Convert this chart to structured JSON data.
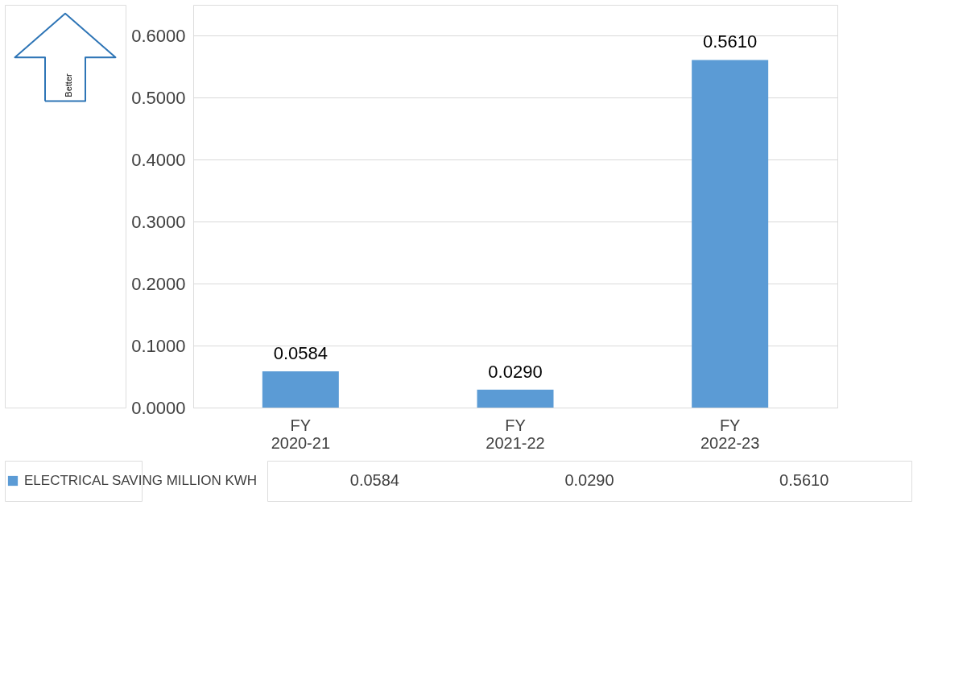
{
  "chart_data": {
    "type": "bar",
    "categories": [
      "FY 2020-21",
      "FY 2021-22",
      "FY 2022-23"
    ],
    "series": [
      {
        "name": "ELECTRICAL SAVING MILLION KWH",
        "color": "#5b9bd5",
        "values": [
          0.0584,
          0.029,
          0.561
        ],
        "value_labels": [
          "0.0584",
          "0.0290",
          "0.5610"
        ]
      }
    ],
    "ylim": [
      0,
      0.65
    ],
    "yticks": [
      {
        "value": 0,
        "label": "0.0000"
      },
      {
        "value": 0.1,
        "label": "0.1000"
      },
      {
        "value": 0.2,
        "label": "0.2000"
      },
      {
        "value": 0.3,
        "label": "0.3000"
      },
      {
        "value": 0.4,
        "label": "0.4000"
      },
      {
        "value": 0.5,
        "label": "0.5000"
      },
      {
        "value": 0.6,
        "label": "0.6000"
      }
    ],
    "grid": "y",
    "legend": "bottom left",
    "annotations": [
      "Better"
    ]
  }
}
